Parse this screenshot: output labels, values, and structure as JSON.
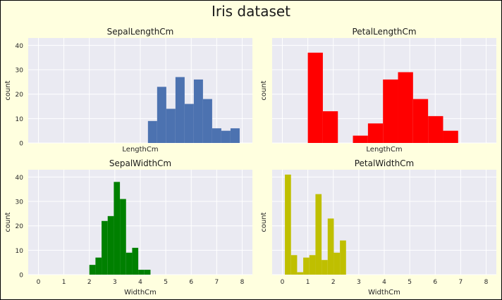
{
  "figure": {
    "title": "Iris dataset",
    "background": "#ffffdf",
    "plot_background": "#eaeaf2",
    "grid_color": "#ffffff"
  },
  "chart_data": [
    {
      "type": "bar",
      "subtype": "histogram",
      "title": "SepalLengthCm",
      "xlabel": "LengthCm",
      "ylabel": "count",
      "xlim": [
        -0.4,
        8.4
      ],
      "ylim": [
        0,
        43
      ],
      "xticks": [],
      "yticks": [
        0,
        10,
        20,
        30,
        40
      ],
      "grid": true,
      "color": "#4c72b0",
      "bins": [
        {
          "x0": 4.3,
          "x1": 4.66,
          "value": 9
        },
        {
          "x0": 4.66,
          "x1": 5.02,
          "value": 23
        },
        {
          "x0": 5.02,
          "x1": 5.38,
          "value": 14
        },
        {
          "x0": 5.38,
          "x1": 5.74,
          "value": 27
        },
        {
          "x0": 5.74,
          "x1": 6.1,
          "value": 16
        },
        {
          "x0": 6.1,
          "x1": 6.46,
          "value": 26
        },
        {
          "x0": 6.46,
          "x1": 6.82,
          "value": 18
        },
        {
          "x0": 6.82,
          "x1": 7.18,
          "value": 6
        },
        {
          "x0": 7.18,
          "x1": 7.54,
          "value": 5
        },
        {
          "x0": 7.54,
          "x1": 7.9,
          "value": 6
        }
      ]
    },
    {
      "type": "bar",
      "subtype": "histogram",
      "title": "PetalLengthCm",
      "xlabel": "LengthCm",
      "ylabel": "count",
      "xlim": [
        -0.4,
        8.4
      ],
      "ylim": [
        0,
        43
      ],
      "xticks": [],
      "yticks": [],
      "grid": true,
      "color": "#ff0000",
      "bins": [
        {
          "x0": 1.0,
          "x1": 1.59,
          "value": 37
        },
        {
          "x0": 1.59,
          "x1": 2.18,
          "value": 13
        },
        {
          "x0": 2.18,
          "x1": 2.77,
          "value": 0
        },
        {
          "x0": 2.77,
          "x1": 3.36,
          "value": 3
        },
        {
          "x0": 3.36,
          "x1": 3.95,
          "value": 8
        },
        {
          "x0": 3.95,
          "x1": 4.54,
          "value": 26
        },
        {
          "x0": 4.54,
          "x1": 5.13,
          "value": 29
        },
        {
          "x0": 5.13,
          "x1": 5.72,
          "value": 18
        },
        {
          "x0": 5.72,
          "x1": 6.31,
          "value": 11
        },
        {
          "x0": 6.31,
          "x1": 6.9,
          "value": 5
        }
      ]
    },
    {
      "type": "bar",
      "subtype": "histogram",
      "title": "SepalWidthCm",
      "xlabel": "WidthCm",
      "ylabel": "count",
      "xlim": [
        -0.4,
        8.4
      ],
      "ylim": [
        0,
        43
      ],
      "xticks": [
        0,
        1,
        2,
        3,
        4,
        5,
        6,
        7,
        8
      ],
      "yticks": [
        0,
        10,
        20,
        30,
        40
      ],
      "grid": true,
      "color": "#008000",
      "bins": [
        {
          "x0": 2.0,
          "x1": 2.24,
          "value": 4
        },
        {
          "x0": 2.24,
          "x1": 2.48,
          "value": 7
        },
        {
          "x0": 2.48,
          "x1": 2.72,
          "value": 22
        },
        {
          "x0": 2.72,
          "x1": 2.96,
          "value": 24
        },
        {
          "x0": 2.96,
          "x1": 3.2,
          "value": 38
        },
        {
          "x0": 3.2,
          "x1": 3.44,
          "value": 31
        },
        {
          "x0": 3.44,
          "x1": 3.68,
          "value": 9
        },
        {
          "x0": 3.68,
          "x1": 3.92,
          "value": 11
        },
        {
          "x0": 3.92,
          "x1": 4.16,
          "value": 2
        },
        {
          "x0": 4.16,
          "x1": 4.4,
          "value": 2
        }
      ]
    },
    {
      "type": "bar",
      "subtype": "histogram",
      "title": "PetalWidthCm",
      "xlabel": "WidthCm",
      "ylabel": "count",
      "xlim": [
        -0.4,
        8.4
      ],
      "ylim": [
        0,
        43
      ],
      "xticks": [
        0,
        1,
        2,
        3,
        4,
        5,
        6,
        7,
        8
      ],
      "yticks": [],
      "grid": true,
      "color": "#bfbf00",
      "bins": [
        {
          "x0": 0.1,
          "x1": 0.34,
          "value": 41
        },
        {
          "x0": 0.34,
          "x1": 0.58,
          "value": 8
        },
        {
          "x0": 0.58,
          "x1": 0.82,
          "value": 1
        },
        {
          "x0": 0.82,
          "x1": 1.06,
          "value": 7
        },
        {
          "x0": 1.06,
          "x1": 1.3,
          "value": 8
        },
        {
          "x0": 1.3,
          "x1": 1.54,
          "value": 33
        },
        {
          "x0": 1.54,
          "x1": 1.78,
          "value": 6
        },
        {
          "x0": 1.78,
          "x1": 2.02,
          "value": 23
        },
        {
          "x0": 2.02,
          "x1": 2.26,
          "value": 9
        },
        {
          "x0": 2.26,
          "x1": 2.5,
          "value": 14
        }
      ]
    }
  ]
}
